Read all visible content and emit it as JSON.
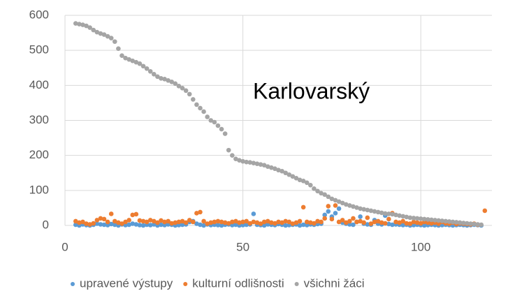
{
  "chart_data": {
    "type": "scatter",
    "annotation": "Karlovarský",
    "x": [
      3,
      4,
      5,
      6,
      7,
      8,
      9,
      10,
      11,
      12,
      13,
      14,
      15,
      16,
      17,
      18,
      19,
      20,
      21,
      22,
      23,
      24,
      25,
      26,
      27,
      28,
      29,
      30,
      31,
      32,
      33,
      34,
      35,
      36,
      37,
      38,
      39,
      40,
      41,
      42,
      43,
      44,
      45,
      46,
      47,
      48,
      49,
      50,
      51,
      52,
      53,
      54,
      55,
      56,
      57,
      58,
      59,
      60,
      61,
      62,
      63,
      64,
      65,
      66,
      67,
      68,
      69,
      70,
      71,
      72,
      73,
      74,
      75,
      76,
      77,
      78,
      79,
      80,
      81,
      82,
      83,
      84,
      85,
      86,
      87,
      88,
      89,
      90,
      91,
      92,
      93,
      94,
      95,
      96,
      97,
      98,
      99,
      100,
      101,
      102,
      103,
      104,
      105,
      106,
      107,
      108,
      109,
      110,
      111,
      112,
      113,
      114,
      115,
      116,
      117,
      118
    ],
    "series": [
      {
        "name": "upravené výstupy",
        "color": "#5b9bd5",
        "values": [
          2,
          0,
          3,
          1,
          0,
          2,
          5,
          3,
          2,
          1,
          4,
          2,
          0,
          3,
          1,
          2,
          5,
          3,
          1,
          0,
          2,
          1,
          3,
          0,
          2,
          1,
          3,
          2,
          0,
          1,
          2,
          3,
          10,
          12,
          5,
          2,
          0,
          3,
          1,
          2,
          1,
          0,
          2,
          3,
          1,
          2,
          0,
          1,
          2,
          3,
          33,
          2,
          1,
          0,
          3,
          2,
          1,
          4,
          2,
          0,
          1,
          2,
          3,
          0,
          2,
          1,
          3,
          2,
          4,
          5,
          30,
          40,
          25,
          35,
          48,
          8,
          5,
          3,
          2,
          10,
          25,
          5,
          3,
          2,
          15,
          5,
          3,
          28,
          4,
          2,
          3,
          2,
          1,
          2,
          0,
          1,
          2,
          1,
          0,
          1,
          2,
          1,
          0,
          1,
          2,
          1,
          0,
          1,
          2,
          1,
          0,
          1,
          2,
          1,
          0,
          null
        ]
      },
      {
        "name": "kulturní odlišnosti",
        "color": "#ed7d31",
        "values": [
          12,
          8,
          10,
          5,
          3,
          6,
          15,
          20,
          18,
          10,
          33,
          12,
          8,
          5,
          10,
          15,
          30,
          32,
          14,
          12,
          10,
          15,
          12,
          8,
          14,
          10,
          12,
          6,
          8,
          10,
          12,
          8,
          15,
          10,
          35,
          38,
          12,
          5,
          8,
          10,
          12,
          10,
          8,
          6,
          10,
          12,
          8,
          10,
          12,
          6,
          10,
          8,
          5,
          10,
          12,
          8,
          6,
          10,
          8,
          12,
          10,
          5,
          8,
          12,
          52,
          10,
          8,
          6,
          12,
          10,
          20,
          55,
          18,
          57,
          10,
          15,
          8,
          12,
          20,
          10,
          12,
          8,
          22,
          5,
          10,
          12,
          8,
          6,
          18,
          35,
          10,
          8,
          12,
          6,
          5,
          10,
          8,
          6,
          10,
          8,
          6,
          8,
          5,
          10,
          6,
          5,
          8,
          4,
          6,
          5,
          4,
          3,
          5,
          2,
          null,
          42
        ]
      },
      {
        "name": "všichni žáci",
        "color": "#a5a5a5",
        "values": [
          577,
          575,
          573,
          570,
          565,
          558,
          552,
          548,
          545,
          540,
          535,
          525,
          505,
          485,
          478,
          474,
          470,
          466,
          462,
          455,
          448,
          440,
          432,
          425,
          420,
          418,
          414,
          410,
          405,
          398,
          392,
          385,
          375,
          360,
          345,
          335,
          325,
          310,
          300,
          295,
          285,
          275,
          262,
          215,
          200,
          190,
          186,
          183,
          181,
          180,
          178,
          176,
          174,
          172,
          168,
          165,
          162,
          158,
          155,
          150,
          145,
          140,
          135,
          130,
          127,
          122,
          115,
          105,
          98,
          92,
          88,
          82,
          76,
          72,
          68,
          64,
          60,
          57,
          54,
          51,
          48,
          46,
          44,
          42,
          40,
          38,
          36,
          34,
          33,
          32,
          30,
          28,
          26,
          24,
          22,
          21,
          20,
          19,
          18,
          17,
          16,
          15,
          14,
          13,
          12,
          11,
          10,
          9,
          8,
          7,
          6,
          5,
          4,
          3,
          2,
          null
        ]
      }
    ],
    "xlim": [
      0,
      120
    ],
    "xticks": [
      0,
      50,
      100
    ],
    "ylim": [
      0,
      600
    ],
    "yticks": [
      0,
      100,
      200,
      300,
      400,
      500,
      600
    ],
    "grid": true,
    "legend": "bottom"
  }
}
